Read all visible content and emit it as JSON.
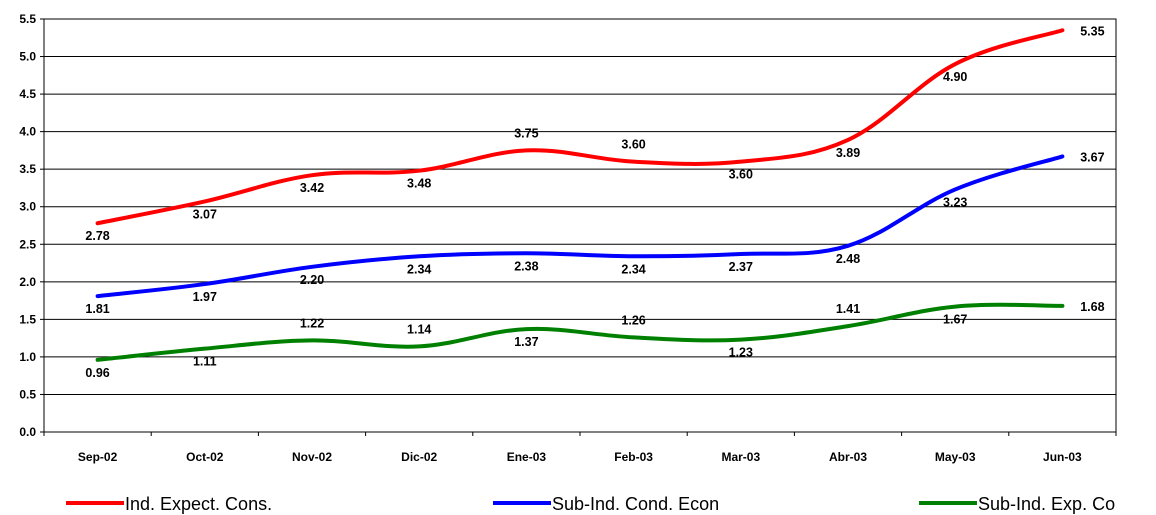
{
  "chart_data": {
    "type": "line",
    "categories": [
      "Sep-02",
      "Oct-02",
      "Nov-02",
      "Dic-02",
      "Ene-03",
      "Feb-03",
      "Mar-03",
      "Abr-03",
      "May-03",
      "Jun-03"
    ],
    "ylim": [
      0,
      5.5
    ],
    "yticks": [
      "0.0",
      "0.5",
      "1.0",
      "1.5",
      "2.0",
      "2.5",
      "3.0",
      "3.5",
      "4.0",
      "4.5",
      "5.0",
      "5.5"
    ],
    "grid": true,
    "legend_position": "bottom",
    "series": [
      {
        "name": "Ind. Expect. Cons.",
        "color": "#ff0000",
        "values": [
          2.78,
          3.07,
          3.42,
          3.48,
          3.75,
          3.6,
          3.6,
          3.89,
          4.9,
          5.35
        ],
        "labels": [
          "2.78",
          "3.07",
          "3.42",
          "3.48",
          "3.75",
          "3.60",
          "3.60",
          "3.89",
          "4.90",
          "5.35"
        ]
      },
      {
        "name": "Sub-Ind. Cond. Econ",
        "color": "#0000ff",
        "values": [
          1.81,
          1.97,
          2.2,
          2.34,
          2.38,
          2.34,
          2.37,
          2.48,
          3.23,
          3.67
        ],
        "labels": [
          "1.81",
          "1.97",
          "2.20",
          "2.34",
          "2.38",
          "2.34",
          "2.37",
          "2.48",
          "3.23",
          "3.67"
        ]
      },
      {
        "name": "Sub-Ind. Exp. Co",
        "color": "#008000",
        "values": [
          0.96,
          1.11,
          1.22,
          1.14,
          1.37,
          1.26,
          1.23,
          1.41,
          1.67,
          1.68
        ],
        "labels": [
          "0.96",
          "1.11",
          "1.22",
          "1.14",
          "1.37",
          "1.26",
          "1.23",
          "1.41",
          "1.67",
          "1.68"
        ]
      }
    ]
  }
}
